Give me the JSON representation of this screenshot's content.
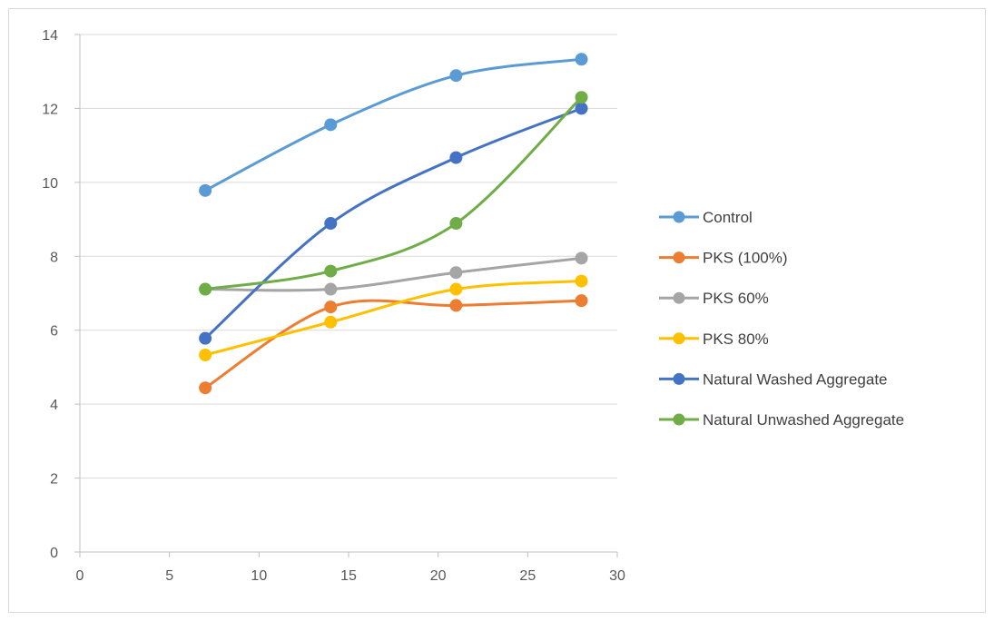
{
  "chart_data": {
    "type": "line",
    "title": "",
    "xlabel": "",
    "ylabel": "",
    "xlim": [
      0,
      30
    ],
    "ylim": [
      0,
      14
    ],
    "x_ticks": [
      0,
      5,
      10,
      15,
      20,
      25,
      30
    ],
    "y_ticks": [
      0,
      2,
      4,
      6,
      8,
      10,
      12,
      14
    ],
    "grid": "horizontal",
    "legend_position": "right",
    "smooth": true,
    "x": [
      7,
      14,
      21,
      28
    ],
    "series": [
      {
        "name": "Control",
        "color": "#5B9BD5",
        "values": [
          9.78,
          11.56,
          12.89,
          13.33
        ]
      },
      {
        "name": "PKS (100%)",
        "color": "#ED7D31",
        "values": [
          4.44,
          6.63,
          6.67,
          6.8
        ]
      },
      {
        "name": "PKS 60%",
        "color": "#A5A5A5",
        "values": [
          7.11,
          7.11,
          7.56,
          7.95
        ]
      },
      {
        "name": "PKS 80%",
        "color": "#FFC000",
        "values": [
          5.33,
          6.22,
          7.11,
          7.33
        ]
      },
      {
        "name": "Natural Washed Aggregate",
        "color": "#4472C4",
        "values": [
          5.78,
          8.89,
          10.67,
          12.0
        ]
      },
      {
        "name": "Natural Unwashed Aggregate",
        "color": "#70AD47",
        "values": [
          7.11,
          7.6,
          8.89,
          12.3
        ]
      }
    ]
  }
}
